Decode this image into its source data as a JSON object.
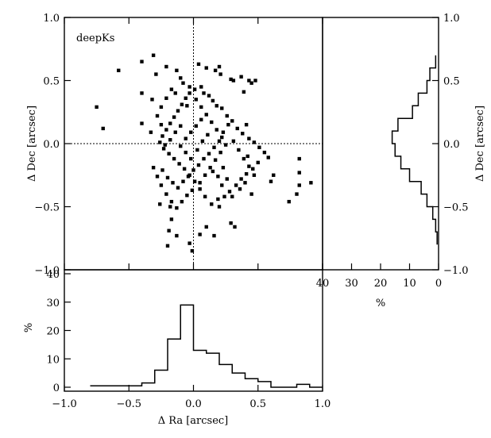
{
  "chart_data": [
    {
      "type": "scatter",
      "panel": "main",
      "annotation": "deepKs",
      "xlabel": "Δ Ra [arcsec]",
      "ylabel": "Δ Dec [arcsec]",
      "xlim": [
        -1.0,
        1.0
      ],
      "ylim": [
        -1.0,
        1.0
      ],
      "x_ticks": [
        -1.0,
        -0.5,
        0.0,
        0.5,
        1.0
      ],
      "x_tick_labels": [
        "−1.0",
        "−0.5",
        "0.0",
        "0.5",
        "1.0"
      ],
      "y_ticks": [
        -1.0,
        -0.5,
        0.0,
        0.5,
        1.0
      ],
      "y_tick_labels": [
        "−1.0",
        "−0.5",
        "0.0",
        "0.5",
        "1.0"
      ],
      "reference_lines": {
        "x": 0.0,
        "y": 0.0,
        "style": "dotted"
      },
      "points": [
        [
          -0.75,
          0.29
        ],
        [
          -0.7,
          0.12
        ],
        [
          -0.58,
          0.58
        ],
        [
          -0.4,
          0.65
        ],
        [
          -0.31,
          0.7
        ],
        [
          -0.05,
          0.3
        ],
        [
          0.04,
          0.63
        ],
        [
          0.06,
          0.45
        ],
        [
          0.1,
          0.6
        ],
        [
          0.2,
          0.61
        ],
        [
          0.17,
          0.58
        ],
        [
          0.21,
          0.55
        ],
        [
          0.29,
          0.51
        ],
        [
          0.31,
          0.5
        ],
        [
          0.37,
          0.53
        ],
        [
          0.43,
          0.5
        ],
        [
          0.45,
          0.48
        ],
        [
          0.48,
          0.5
        ],
        [
          0.39,
          0.41
        ],
        [
          0.41,
          0.15
        ],
        [
          -0.4,
          0.4
        ],
        [
          -0.32,
          0.35
        ],
        [
          -0.4,
          0.16
        ],
        [
          -0.33,
          0.09
        ],
        [
          -0.31,
          -0.19
        ],
        [
          -0.26,
          -0.48
        ],
        [
          -0.18,
          -0.5
        ],
        [
          -0.17,
          -0.6
        ],
        [
          -0.19,
          -0.69
        ],
        [
          -0.13,
          -0.73
        ],
        [
          -0.03,
          -0.79
        ],
        [
          -0.01,
          -0.85
        ],
        [
          0.05,
          -0.72
        ],
        [
          0.1,
          -0.66
        ],
        [
          0.2,
          -0.5
        ],
        [
          0.29,
          -0.63
        ],
        [
          0.32,
          -0.66
        ],
        [
          0.45,
          -0.4
        ],
        [
          0.42,
          -0.1
        ],
        [
          0.6,
          -0.3
        ],
        [
          0.62,
          -0.25
        ],
        [
          0.74,
          -0.46
        ],
        [
          0.8,
          -0.4
        ],
        [
          0.82,
          -0.33
        ],
        [
          0.82,
          -0.23
        ],
        [
          0.82,
          -0.12
        ],
        [
          0.91,
          -0.31
        ],
        [
          -0.2,
          -0.81
        ],
        [
          0.16,
          -0.73
        ],
        [
          -0.29,
          0.55
        ],
        [
          -0.21,
          0.61
        ],
        [
          -0.13,
          0.58
        ],
        [
          -0.1,
          0.52
        ],
        [
          -0.08,
          0.48
        ],
        [
          -0.03,
          0.45
        ],
        [
          0.01,
          0.43
        ],
        [
          0.08,
          0.4
        ],
        [
          0.12,
          0.38
        ],
        [
          0.15,
          0.34
        ],
        [
          0.18,
          0.3
        ],
        [
          0.22,
          0.28
        ],
        [
          0.26,
          0.22
        ],
        [
          0.3,
          0.18
        ],
        [
          0.34,
          0.12
        ],
        [
          0.38,
          0.08
        ],
        [
          0.43,
          0.04
        ],
        [
          0.47,
          0.01
        ],
        [
          0.51,
          -0.03
        ],
        [
          0.55,
          -0.07
        ],
        [
          0.58,
          -0.11
        ],
        [
          0.5,
          -0.15
        ],
        [
          0.46,
          -0.2
        ],
        [
          0.41,
          -0.24
        ],
        [
          0.37,
          -0.28
        ],
        [
          0.33,
          -0.33
        ],
        [
          0.28,
          -0.38
        ],
        [
          0.24,
          -0.42
        ],
        [
          0.19,
          -0.44
        ],
        [
          0.14,
          -0.48
        ],
        [
          0.09,
          -0.42
        ],
        [
          0.05,
          -0.36
        ],
        [
          0.01,
          -0.3
        ],
        [
          -0.03,
          -0.25
        ],
        [
          -0.07,
          -0.2
        ],
        [
          -0.11,
          -0.16
        ],
        [
          -0.15,
          -0.12
        ],
        [
          -0.19,
          -0.08
        ],
        [
          -0.23,
          -0.04
        ],
        [
          -0.26,
          0.01
        ],
        [
          -0.24,
          0.06
        ],
        [
          -0.21,
          0.11
        ],
        [
          -0.18,
          0.16
        ],
        [
          -0.15,
          0.21
        ],
        [
          -0.12,
          0.26
        ],
        [
          -0.09,
          0.31
        ],
        [
          -0.06,
          0.36
        ],
        [
          -0.03,
          0.4
        ],
        [
          0.02,
          0.35
        ],
        [
          0.06,
          0.29
        ],
        [
          0.1,
          0.23
        ],
        [
          0.14,
          0.17
        ],
        [
          0.18,
          0.11
        ],
        [
          0.22,
          0.05
        ],
        [
          0.25,
          -0.01
        ],
        [
          0.21,
          -0.07
        ],
        [
          0.17,
          -0.13
        ],
        [
          0.13,
          -0.19
        ],
        [
          0.09,
          -0.25
        ],
        [
          0.05,
          -0.31
        ],
        [
          -0.01,
          -0.37
        ],
        [
          -0.05,
          -0.41
        ],
        [
          -0.09,
          -0.46
        ],
        [
          -0.13,
          -0.51
        ],
        [
          -0.17,
          -0.46
        ],
        [
          -0.21,
          -0.4
        ],
        [
          -0.25,
          -0.33
        ],
        [
          -0.28,
          -0.26
        ],
        [
          -0.24,
          -0.21
        ],
        [
          -0.2,
          -0.27
        ],
        [
          -0.16,
          -0.31
        ],
        [
          -0.12,
          -0.35
        ],
        [
          -0.08,
          -0.3
        ],
        [
          -0.04,
          -0.26
        ],
        [
          0.0,
          -0.21
        ],
        [
          0.04,
          -0.17
        ],
        [
          0.08,
          -0.12
        ],
        [
          0.12,
          -0.08
        ],
        [
          0.16,
          -0.03
        ],
        [
          0.2,
          0.02
        ],
        [
          0.23,
          0.09
        ],
        [
          0.27,
          0.15
        ],
        [
          0.31,
          0.02
        ],
        [
          0.35,
          -0.05
        ],
        [
          0.39,
          -0.12
        ],
        [
          0.43,
          -0.18
        ],
        [
          0.47,
          -0.25
        ],
        [
          0.4,
          -0.31
        ],
        [
          0.36,
          -0.36
        ],
        [
          0.3,
          -0.42
        ],
        [
          0.26,
          -0.28
        ],
        [
          0.22,
          -0.33
        ],
        [
          -0.1,
          -0.02
        ],
        [
          -0.06,
          0.04
        ],
        [
          -0.02,
          0.09
        ],
        [
          0.02,
          0.14
        ],
        [
          0.06,
          0.19
        ],
        [
          -0.14,
          0.09
        ],
        [
          -0.18,
          0.03
        ],
        [
          -0.22,
          -0.01
        ],
        [
          -0.17,
          0.43
        ],
        [
          -0.21,
          0.36
        ],
        [
          -0.25,
          0.29
        ],
        [
          -0.28,
          0.22
        ],
        [
          -0.25,
          0.15
        ],
        [
          -0.14,
          0.4
        ],
        [
          -0.1,
          0.14
        ],
        [
          -0.06,
          -0.07
        ],
        [
          -0.02,
          -0.12
        ],
        [
          0.03,
          -0.05
        ],
        [
          0.07,
          0.02
        ],
        [
          0.11,
          0.07
        ],
        [
          0.15,
          -0.22
        ],
        [
          0.19,
          -0.26
        ],
        [
          0.23,
          -0.19
        ]
      ]
    },
    {
      "type": "histogram",
      "panel": "bottom",
      "xlabel": "Δ Ra [arcsec]",
      "ylabel": "%",
      "xlim": [
        -1.0,
        1.0
      ],
      "ylim": [
        0,
        40
      ],
      "y_ticks": [
        0,
        10,
        20,
        30,
        40
      ],
      "x_ticks": [
        -1.0,
        -0.5,
        0.0,
        0.5,
        1.0
      ],
      "x_tick_labels": [
        "−1.0",
        "−0.5",
        "0.0",
        "0.5",
        "1.0"
      ],
      "bin_edges": [
        -0.8,
        -0.7,
        -0.6,
        -0.5,
        -0.4,
        -0.3,
        -0.2,
        -0.1,
        0.0,
        0.1,
        0.2,
        0.3,
        0.4,
        0.5,
        0.6,
        0.7,
        0.8,
        0.9,
        1.0
      ],
      "values": [
        0.5,
        0.5,
        0.5,
        0.5,
        1.5,
        6,
        17,
        29,
        13,
        12,
        8,
        5,
        3,
        2,
        0,
        0,
        1,
        0
      ]
    },
    {
      "type": "histogram",
      "panel": "right",
      "orientation": "horizontal",
      "xlabel": "%",
      "ylabel": "Δ Dec [arcsec]",
      "xlim": [
        40,
        0
      ],
      "x_ticks": [
        40,
        30,
        20,
        10,
        0
      ],
      "ylim": [
        -1.0,
        1.0
      ],
      "y_ticks": [
        -1.0,
        -0.5,
        0.0,
        0.5,
        1.0
      ],
      "y_tick_labels": [
        "−1.0",
        "−0.5",
        "0.0",
        "0.5",
        "1.0"
      ],
      "bin_edges": [
        -0.8,
        -0.7,
        -0.6,
        -0.5,
        -0.4,
        -0.3,
        -0.2,
        -0.1,
        0.0,
        0.1,
        0.2,
        0.3,
        0.4,
        0.5,
        0.6,
        0.7
      ],
      "values": [
        0.5,
        1,
        2,
        4,
        6,
        10,
        13,
        15,
        16,
        14,
        9,
        7,
        4,
        3,
        1
      ]
    }
  ]
}
